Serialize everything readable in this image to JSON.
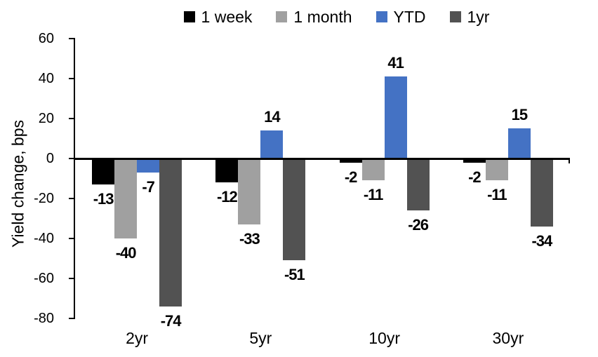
{
  "chart_data": {
    "type": "bar",
    "title": "",
    "ylabel": "Yield change, bps",
    "categories": [
      "2yr",
      "5yr",
      "10yr",
      "30yr"
    ],
    "series": [
      {
        "name": "1 week",
        "color": "#000000",
        "values": [
          -13,
          -12,
          -2,
          -2
        ]
      },
      {
        "name": "1 month",
        "color": "#A0A0A0",
        "values": [
          -40,
          -33,
          -11,
          -11
        ]
      },
      {
        "name": "YTD",
        "color": "#4472C4",
        "values": [
          -7,
          14,
          41,
          15
        ]
      },
      {
        "name": "1yr",
        "color": "#525252",
        "values": [
          -74,
          -51,
          -26,
          -34
        ]
      }
    ],
    "ylim": [
      -80,
      60
    ],
    "yticks": [
      60,
      40,
      20,
      0,
      -20,
      -40,
      -60,
      -80
    ],
    "grid": false,
    "legend_position": "top",
    "data_labels": "outside-end",
    "axis_color": "#000000",
    "background_color": "#FFFFFF"
  }
}
